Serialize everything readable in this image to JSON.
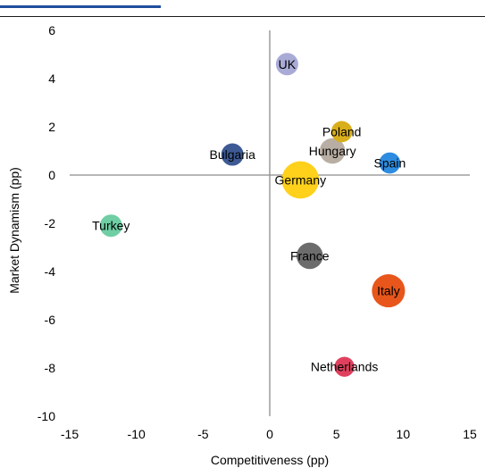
{
  "chart_data": {
    "type": "scatter",
    "title": "",
    "xlabel": "Competitiveness (pp)",
    "ylabel": "Market Dynamism (pp)",
    "xlim": [
      -15,
      15
    ],
    "ylim": [
      -10,
      6
    ],
    "xticks": [
      -15,
      -10,
      -5,
      0,
      5,
      10,
      15
    ],
    "yticks": [
      -10,
      -8,
      -6,
      -4,
      -2,
      0,
      2,
      4,
      6
    ],
    "points": [
      {
        "label": "UK",
        "x": 1.3,
        "y": 4.6,
        "size": 1.0,
        "color": "#a9abd6"
      },
      {
        "label": "Poland",
        "x": 5.4,
        "y": 1.8,
        "size": 0.9,
        "color": "#d9ae1c"
      },
      {
        "label": "Hungary",
        "x": 4.7,
        "y": 1.0,
        "size": 1.3,
        "color": "#b9aea3"
      },
      {
        "label": "Bulgaria",
        "x": -2.8,
        "y": 0.85,
        "size": 1.0,
        "color": "#3d5a94"
      },
      {
        "label": "Spain",
        "x": 9.0,
        "y": 0.5,
        "size": 0.9,
        "color": "#2e8ce0"
      },
      {
        "label": "Germany",
        "x": 2.3,
        "y": -0.2,
        "size": 2.8,
        "color": "#ffd11a"
      },
      {
        "label": "Turkey",
        "x": -11.9,
        "y": -2.1,
        "size": 1.0,
        "color": "#6fcea4"
      },
      {
        "label": "France",
        "x": 3.0,
        "y": -3.35,
        "size": 1.4,
        "color": "#6c6c6c"
      },
      {
        "label": "Italy",
        "x": 8.9,
        "y": -4.8,
        "size": 2.2,
        "color": "#e8561b"
      },
      {
        "label": "Netherlands",
        "x": 5.6,
        "y": -7.95,
        "size": 0.8,
        "color": "#e0405e"
      }
    ]
  }
}
